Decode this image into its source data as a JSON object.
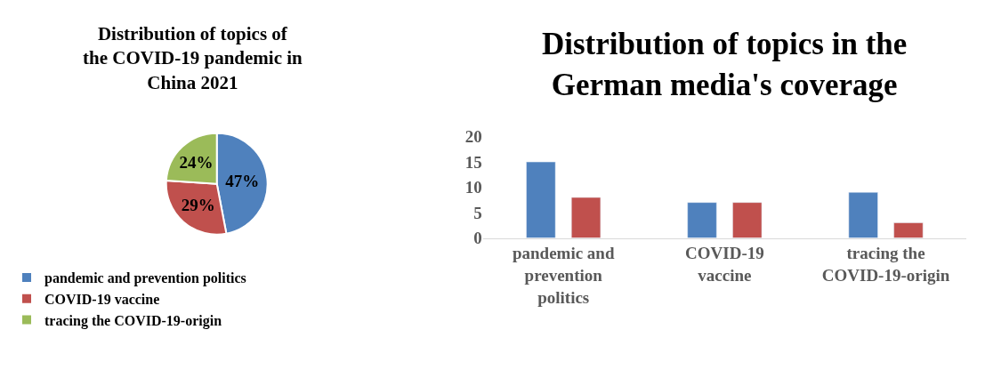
{
  "chart_data": [
    {
      "type": "pie",
      "title": "Distribution of topics of the COVID-19 pandemic in China 2021",
      "categories": [
        "pandemic and prevention politics",
        "COVID-19 vaccine",
        "tracing the COVID-19-origin"
      ],
      "values": [
        47,
        29,
        24
      ],
      "value_labels": [
        "47%",
        "29%",
        "24%"
      ],
      "colors": [
        "#4f81bd",
        "#c0504d",
        "#9bbb59"
      ],
      "legend": "bottom"
    },
    {
      "type": "bar",
      "title": "Distribution of topics in the German media's coverage",
      "categories": [
        "pandemic and prevention politics",
        "COVID-19 vaccine",
        "tracing the COVID-19-origin"
      ],
      "series": [
        {
          "color": "#4f81bd",
          "values": [
            15,
            7,
            9
          ]
        },
        {
          "color": "#c0504d",
          "values": [
            8,
            7,
            3
          ]
        }
      ],
      "ylim": [
        0,
        20
      ],
      "yticks": [
        0,
        5,
        10,
        15,
        20
      ]
    }
  ]
}
